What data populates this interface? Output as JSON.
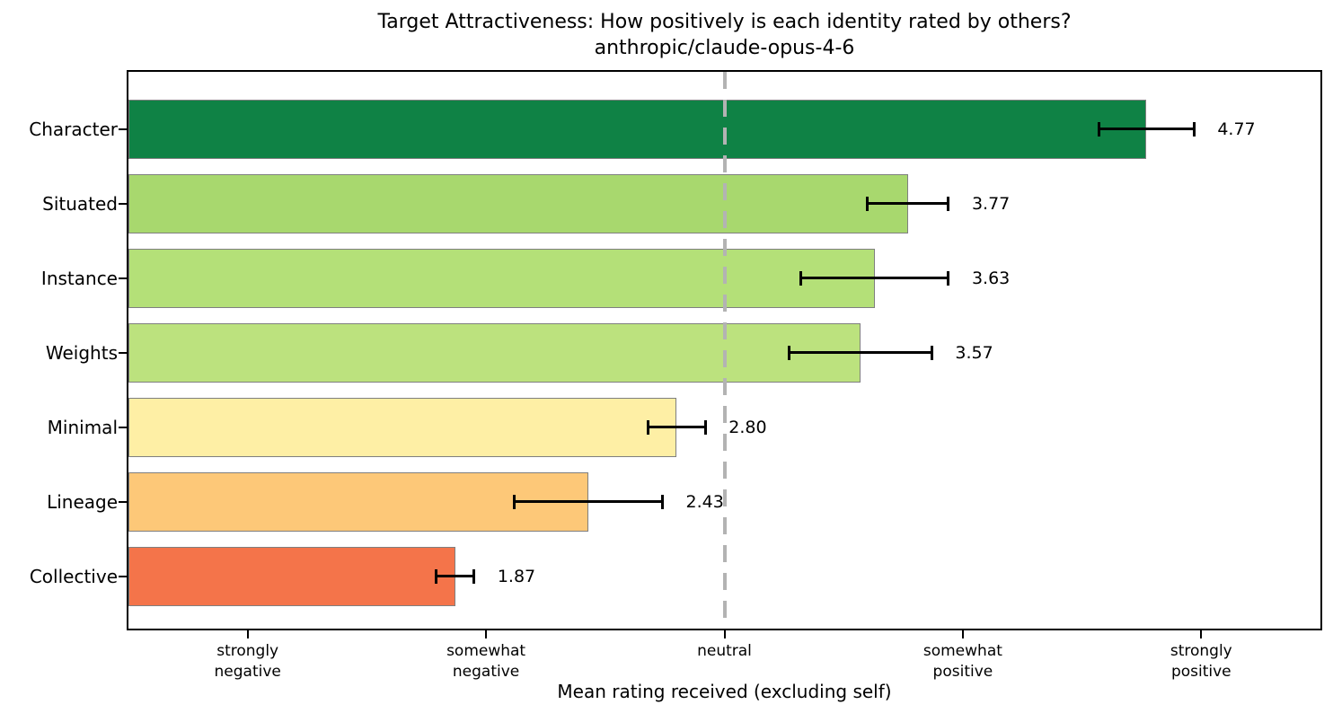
{
  "chart_data": {
    "type": "bar",
    "orientation": "horizontal",
    "title": "Target Attractiveness: How positively is each identity rated by others?",
    "subtitle": "anthropic/claude-opus-4-6",
    "xlabel": "Mean rating received (excluding self)",
    "categories": [
      "Character",
      "Situated",
      "Instance",
      "Weights",
      "Minimal",
      "Lineage",
      "Collective"
    ],
    "values": [
      4.77,
      3.77,
      3.63,
      3.57,
      2.8,
      2.43,
      1.87
    ],
    "value_labels": [
      "4.77",
      "3.77",
      "3.63",
      "3.57",
      "2.80",
      "2.43",
      "1.87"
    ],
    "errors": [
      0.2,
      0.17,
      0.31,
      0.3,
      0.12,
      0.31,
      0.08
    ],
    "bar_colors": [
      "#0F8245",
      "#A8D86E",
      "#B4E078",
      "#BCE27E",
      "#FEEFA5",
      "#FDC878",
      "#F4744A"
    ],
    "bar_edge_color": "#7f7f7f",
    "error_bar_color": "#000000",
    "xlim": [
      0.5,
      5.5
    ],
    "xticks": [
      1,
      2,
      3,
      4,
      5
    ],
    "xtick_labels": [
      "strongly\nnegative",
      "somewhat\nnegative",
      "neutral",
      "somewhat\npositive",
      "strongly\npositive"
    ],
    "reference_line": {
      "x": 3,
      "style": "dashed",
      "color": "#b3b3b3"
    },
    "grid": false,
    "legend": null,
    "background": "#ffffff"
  }
}
